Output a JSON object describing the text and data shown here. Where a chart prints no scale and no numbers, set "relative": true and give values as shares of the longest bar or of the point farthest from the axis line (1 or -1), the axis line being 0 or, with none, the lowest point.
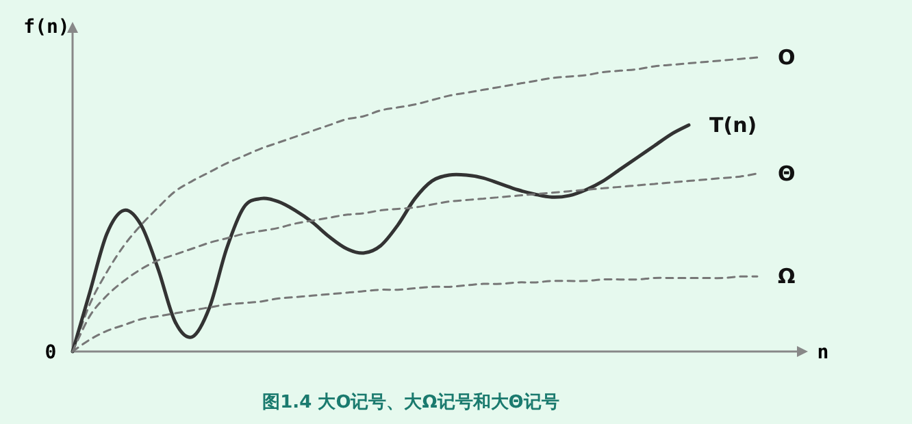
{
  "chart_data": {
    "type": "line",
    "relative": true,
    "title": "图1.4 大O记号、大Ω记号和大Θ记号",
    "xlabel": "n",
    "ylabel": "f(n)",
    "annotations": [
      "0"
    ],
    "categories": [
      null,
      null,
      null,
      null,
      null,
      null,
      null,
      null,
      null,
      null,
      null,
      null,
      null,
      null,
      null,
      null,
      null,
      null,
      null,
      null,
      null,
      null,
      null,
      null,
      null,
      null,
      null,
      null,
      null,
      null,
      null,
      null,
      null,
      null,
      null,
      null,
      null,
      null,
      null,
      null,
      null
    ],
    "series": [
      {
        "name": "O",
        "color": "#777777",
        "line_style": "dashed",
        "values": [
          0,
          0.16,
          0.27,
          0.36,
          0.43,
          0.49,
          0.545,
          0.58,
          0.61,
          0.64,
          0.665,
          0.69,
          0.71,
          0.73,
          0.75,
          0.77,
          0.79,
          0.8,
          0.82,
          0.83,
          0.84,
          0.855,
          0.87,
          0.88,
          0.89,
          0.9,
          0.91,
          0.92,
          0.93,
          0.935,
          0.94,
          0.95,
          0.955,
          0.96,
          0.97,
          0.975,
          0.98,
          0.985,
          0.99,
          0.995,
          1.0
        ]
      },
      {
        "name": "T(n)",
        "color": "#333333",
        "line_style": "solid",
        "values": [
          0,
          0.2,
          0.4,
          0.48,
          0.43,
          0.28,
          0.1,
          0.05,
          0.15,
          0.35,
          0.49,
          0.52,
          0.51,
          0.48,
          0.44,
          0.39,
          0.35,
          0.335,
          0.36,
          0.43,
          0.52,
          0.58,
          0.6,
          0.6,
          0.59,
          0.57,
          0.55,
          0.535,
          0.525,
          0.53,
          0.55,
          0.58,
          0.62,
          0.66,
          0.7,
          0.74,
          0.77,
          null,
          null,
          null,
          null
        ]
      },
      {
        "name": "Θ",
        "color": "#777777",
        "line_style": "dashed",
        "values": [
          0,
          0.12,
          0.19,
          0.24,
          0.28,
          0.31,
          0.33,
          0.35,
          0.37,
          0.385,
          0.4,
          0.41,
          0.42,
          0.435,
          0.445,
          0.455,
          0.465,
          0.47,
          0.48,
          0.485,
          0.49,
          0.5,
          0.51,
          0.515,
          0.52,
          0.525,
          0.53,
          0.535,
          0.54,
          0.545,
          0.55,
          0.555,
          0.56,
          0.565,
          0.57,
          0.575,
          0.58,
          0.585,
          0.59,
          0.595,
          0.605
        ]
      },
      {
        "name": "Ω",
        "color": "#777777",
        "line_style": "dashed",
        "values": [
          0,
          0.04,
          0.07,
          0.09,
          0.11,
          0.12,
          0.13,
          0.14,
          0.15,
          0.16,
          0.165,
          0.17,
          0.18,
          0.185,
          0.19,
          0.195,
          0.2,
          0.205,
          0.21,
          0.21,
          0.215,
          0.22,
          0.22,
          0.225,
          0.23,
          0.23,
          0.235,
          0.235,
          0.24,
          0.24,
          0.24,
          0.245,
          0.245,
          0.245,
          0.25,
          0.25,
          0.25,
          0.25,
          0.25,
          0.255,
          0.255
        ]
      }
    ]
  }
}
